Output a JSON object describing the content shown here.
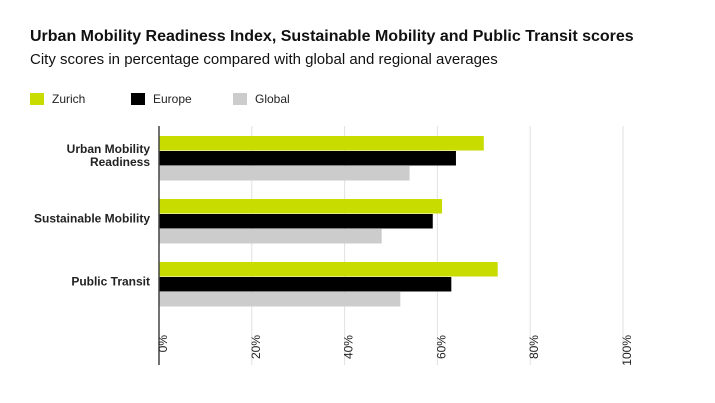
{
  "title": "Urban Mobility Readiness Index, Sustainable Mobility and Public Transit scores",
  "subtitle": "City scores in percentage compared with global and regional averages",
  "chart_data": {
    "type": "bar",
    "orientation": "horizontal",
    "title": "Urban Mobility Readiness Index, Sustainable Mobility and Public Transit scores",
    "subtitle": "City scores in percentage compared with global and regional averages",
    "categories": [
      [
        "Urban Mobility",
        "Readiness"
      ],
      [
        "Sustainable Mobility"
      ],
      [
        "Public Transit"
      ]
    ],
    "series": [
      {
        "name": "Zurich",
        "color": "#c8dc00",
        "values": [
          70,
          61,
          73
        ]
      },
      {
        "name": "Europe",
        "color": "#000000",
        "values": [
          64,
          59,
          63
        ]
      },
      {
        "name": "Global",
        "color": "#cccccc",
        "values": [
          54,
          48,
          52
        ]
      }
    ],
    "xlim": [
      0,
      100
    ],
    "ticks": [
      0,
      20,
      40,
      60,
      80,
      100
    ],
    "tick_labels": [
      "0%",
      "20%",
      "40%",
      "60%",
      "80%",
      "100%"
    ],
    "grid": true,
    "legend": "top-left"
  }
}
